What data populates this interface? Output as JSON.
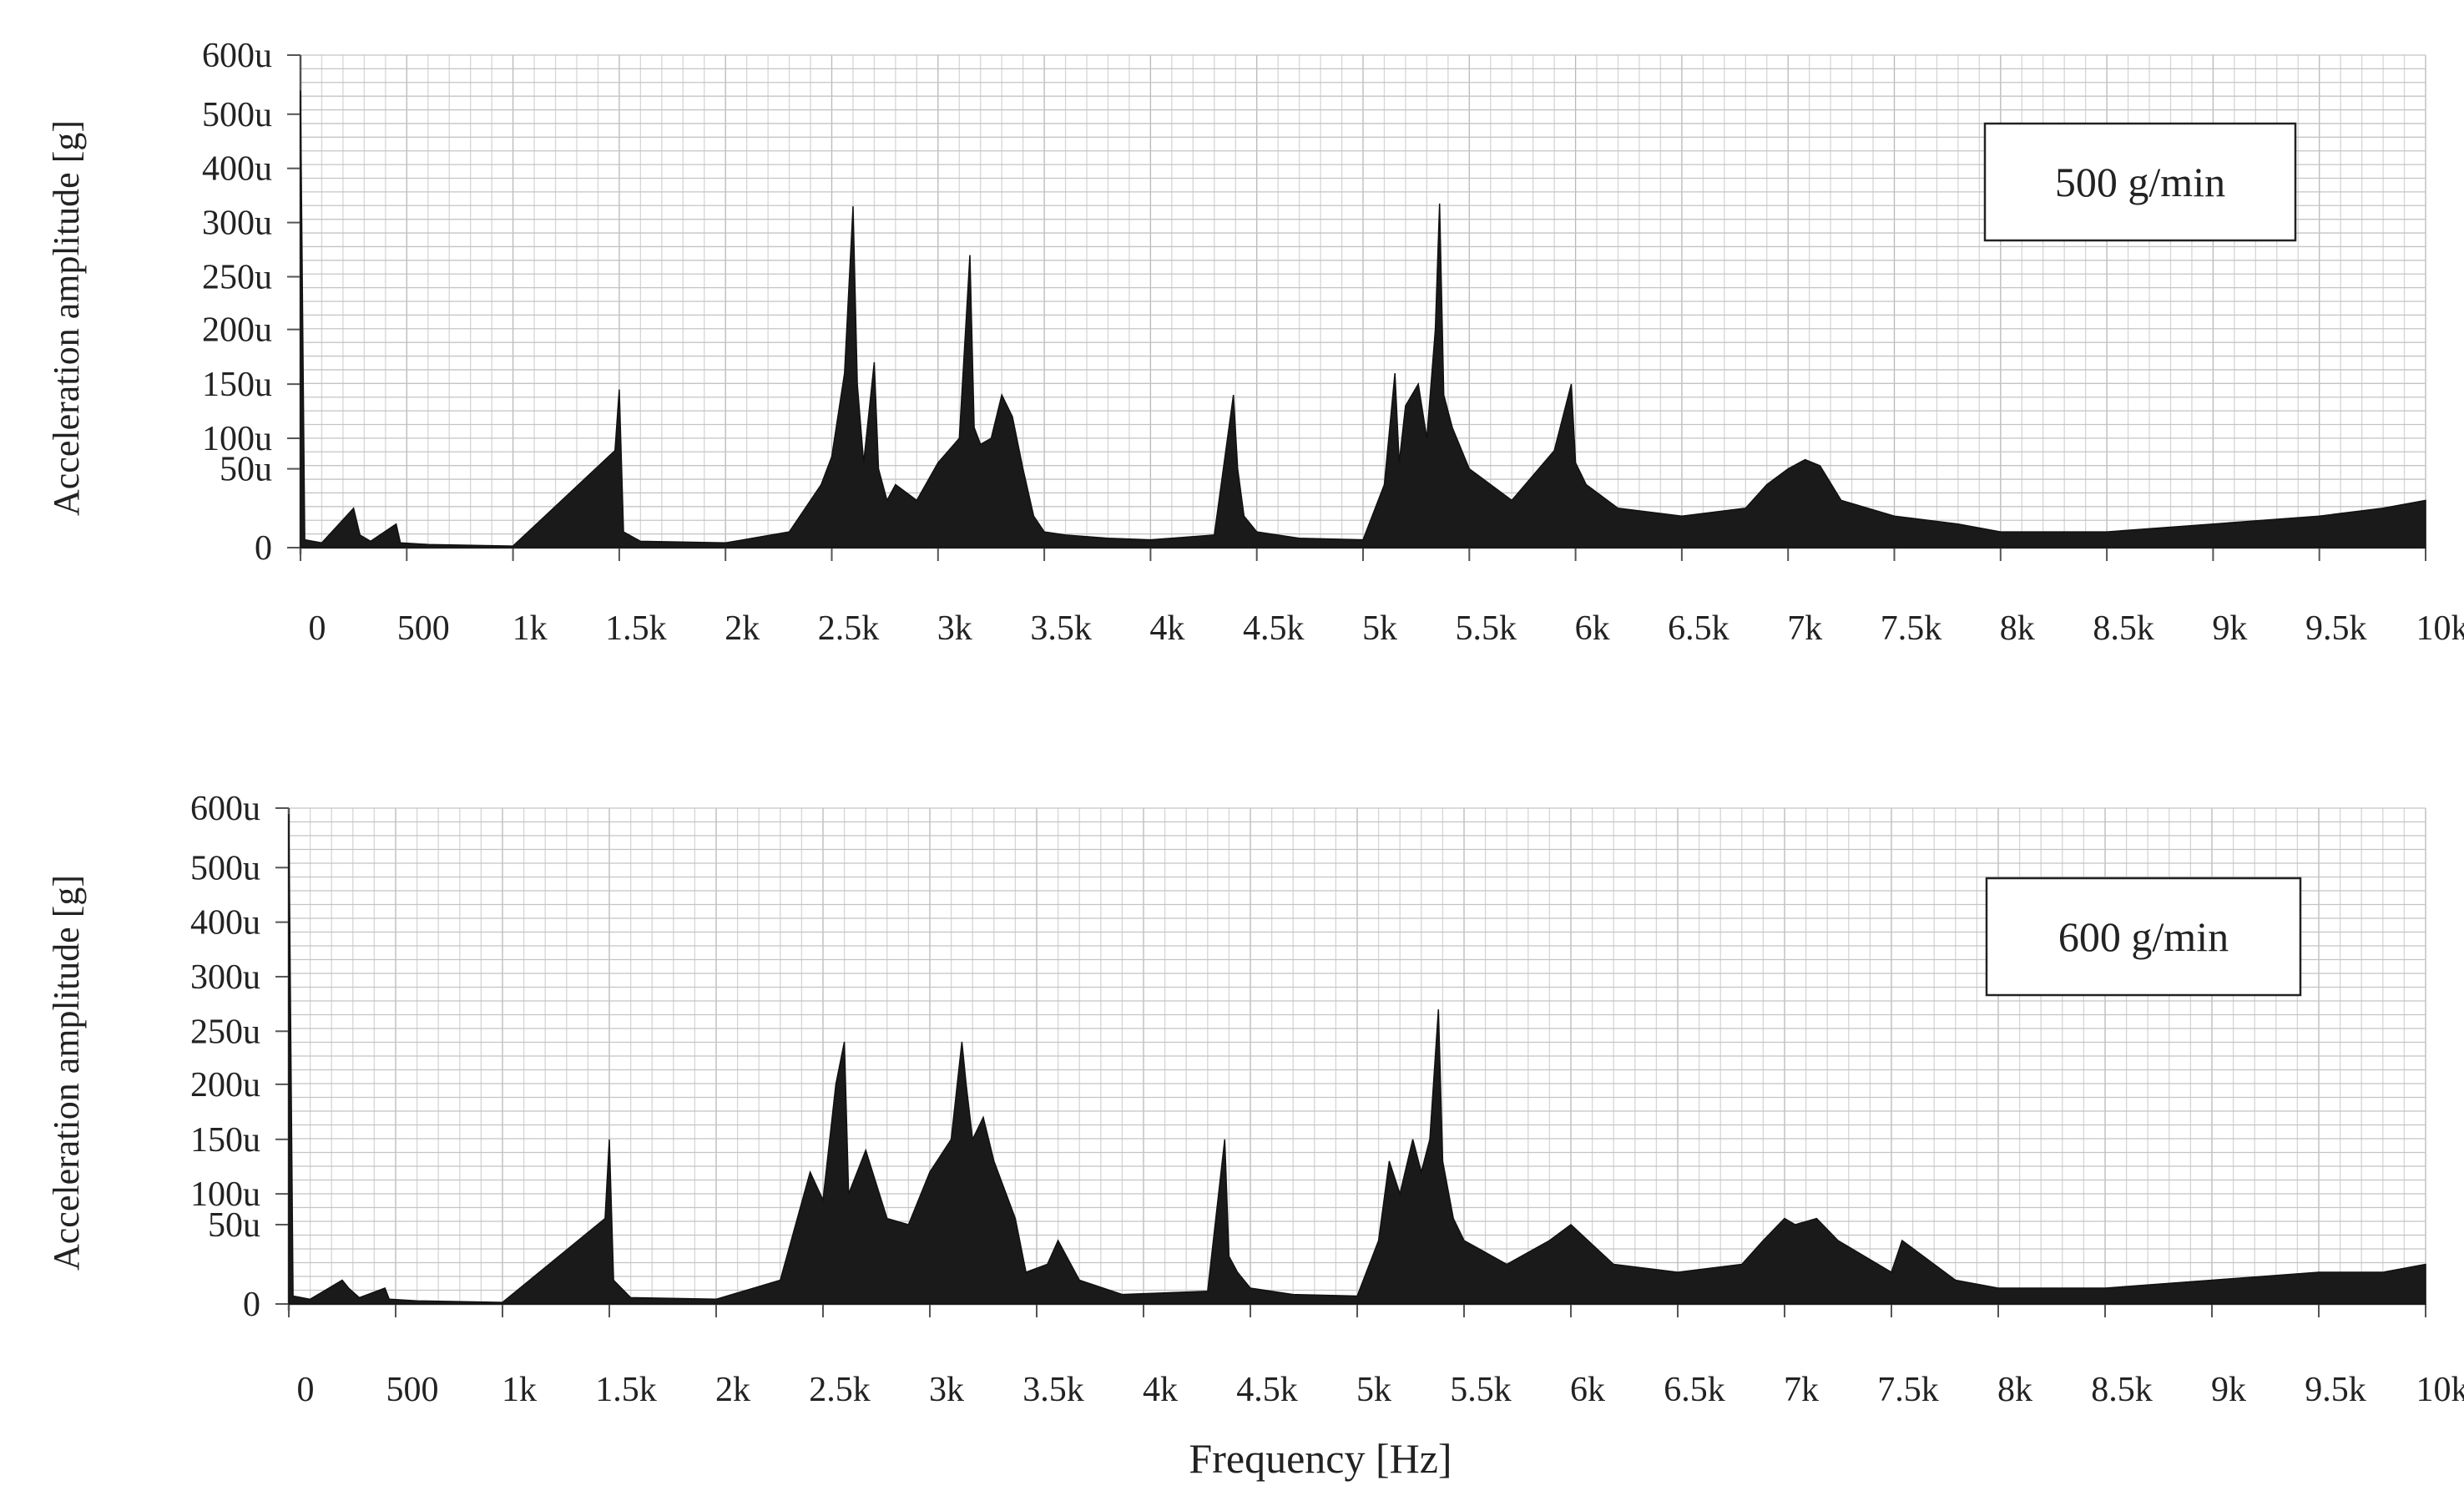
{
  "figure": {
    "xlabel": "Frequency [Hz]"
  },
  "chart_data": [
    {
      "type": "area",
      "annotation": "500 g/min",
      "xlabel": "",
      "ylabel": "Acceleration amplitude [g]",
      "xlim": [
        0,
        10000
      ],
      "ylim": [
        0,
        600
      ],
      "y_unit": "u (micro-g)",
      "grid": true,
      "x_ticks": [
        {
          "value": 0,
          "label": "0"
        },
        {
          "value": 500,
          "label": "500"
        },
        {
          "value": 1000,
          "label": "1k"
        },
        {
          "value": 1500,
          "label": "1.5k"
        },
        {
          "value": 2000,
          "label": "2k"
        },
        {
          "value": 2500,
          "label": "2.5k"
        },
        {
          "value": 3000,
          "label": "3k"
        },
        {
          "value": 3500,
          "label": "3.5k"
        },
        {
          "value": 4000,
          "label": "4k"
        },
        {
          "value": 4500,
          "label": "4.5k"
        },
        {
          "value": 5000,
          "label": "5k"
        },
        {
          "value": 5500,
          "label": "5.5k"
        },
        {
          "value": 6000,
          "label": "6k"
        },
        {
          "value": 6500,
          "label": "6.5k"
        },
        {
          "value": 7000,
          "label": "7k"
        },
        {
          "value": 7500,
          "label": "7.5k"
        },
        {
          "value": 8000,
          "label": "8k"
        },
        {
          "value": 8500,
          "label": "8.5k"
        },
        {
          "value": 9000,
          "label": "9k"
        },
        {
          "value": 9500,
          "label": "9.5k"
        },
        {
          "value": 10000,
          "label": "10k"
        }
      ],
      "y_ticks": [
        {
          "value": 0,
          "label": "0"
        },
        {
          "value": 50,
          "label": "50u"
        },
        {
          "value": 100,
          "label": "100u"
        },
        {
          "value": 150,
          "label": "150u"
        },
        {
          "value": 200,
          "label": "200u"
        },
        {
          "value": 250,
          "label": "250u"
        },
        {
          "value": 300,
          "label": "300u"
        },
        {
          "value": 400,
          "label": "400u"
        },
        {
          "value": 500,
          "label": "500u"
        },
        {
          "value": 600,
          "label": "600u"
        }
      ],
      "x": [
        0,
        20,
        100,
        250,
        280,
        330,
        450,
        470,
        600,
        1000,
        1480,
        1500,
        1520,
        1600,
        2000,
        2300,
        2450,
        2500,
        2560,
        2600,
        2620,
        2650,
        2700,
        2720,
        2760,
        2800,
        2900,
        3000,
        3100,
        3150,
        3170,
        3200,
        3250,
        3300,
        3350,
        3400,
        3450,
        3500,
        3600,
        3800,
        4000,
        4300,
        4390,
        4410,
        4440,
        4500,
        4700,
        5000,
        5100,
        5150,
        5170,
        5200,
        5260,
        5300,
        5340,
        5360,
        5380,
        5420,
        5500,
        5700,
        5900,
        5980,
        6000,
        6050,
        6200,
        6500,
        6800,
        6900,
        7000,
        7080,
        7150,
        7250,
        7500,
        7800,
        8000,
        8500,
        9000,
        9500,
        9800,
        10000
      ],
      "y": [
        540,
        5,
        3,
        25,
        8,
        4,
        15,
        3,
        2,
        1,
        80,
        145,
        10,
        4,
        3,
        10,
        40,
        70,
        160,
        330,
        150,
        60,
        170,
        50,
        30,
        40,
        30,
        60,
        100,
        270,
        110,
        90,
        100,
        140,
        120,
        50,
        20,
        10,
        8,
        6,
        5,
        8,
        140,
        50,
        20,
        10,
        6,
        5,
        40,
        160,
        60,
        130,
        150,
        100,
        200,
        335,
        140,
        110,
        50,
        30,
        80,
        150,
        60,
        40,
        25,
        20,
        25,
        40,
        50,
        65,
        55,
        30,
        20,
        15,
        10,
        10,
        15,
        20,
        25,
        30
      ]
    },
    {
      "type": "area",
      "annotation": "600 g/min",
      "xlabel": "Frequency [Hz]",
      "ylabel": "Acceleration amplitude [g]",
      "xlim": [
        0,
        10000
      ],
      "ylim": [
        0,
        600
      ],
      "y_unit": "u (micro-g)",
      "grid": true,
      "x_ticks": [
        {
          "value": 0,
          "label": "0"
        },
        {
          "value": 500,
          "label": "500"
        },
        {
          "value": 1000,
          "label": "1k"
        },
        {
          "value": 1500,
          "label": "1.5k"
        },
        {
          "value": 2000,
          "label": "2k"
        },
        {
          "value": 2500,
          "label": "2.5k"
        },
        {
          "value": 3000,
          "label": "3k"
        },
        {
          "value": 3500,
          "label": "3.5k"
        },
        {
          "value": 4000,
          "label": "4k"
        },
        {
          "value": 4500,
          "label": "4.5k"
        },
        {
          "value": 5000,
          "label": "5k"
        },
        {
          "value": 5500,
          "label": "5.5k"
        },
        {
          "value": 6000,
          "label": "6k"
        },
        {
          "value": 6500,
          "label": "6.5k"
        },
        {
          "value": 7000,
          "label": "7k"
        },
        {
          "value": 7500,
          "label": "7.5k"
        },
        {
          "value": 8000,
          "label": "8k"
        },
        {
          "value": 8500,
          "label": "8.5k"
        },
        {
          "value": 9000,
          "label": "9k"
        },
        {
          "value": 9500,
          "label": "9.5k"
        },
        {
          "value": 10000,
          "label": "10k"
        }
      ],
      "y_ticks": [
        {
          "value": 0,
          "label": "0"
        },
        {
          "value": 50,
          "label": "50u"
        },
        {
          "value": 100,
          "label": "100u"
        },
        {
          "value": 150,
          "label": "150u"
        },
        {
          "value": 200,
          "label": "200u"
        },
        {
          "value": 250,
          "label": "250u"
        },
        {
          "value": 300,
          "label": "300u"
        },
        {
          "value": 400,
          "label": "400u"
        },
        {
          "value": 500,
          "label": "500u"
        },
        {
          "value": 600,
          "label": "600u"
        }
      ],
      "x": [
        0,
        20,
        100,
        250,
        280,
        330,
        450,
        470,
        600,
        1000,
        1480,
        1500,
        1520,
        1600,
        2000,
        2300,
        2440,
        2500,
        2560,
        2600,
        2620,
        2700,
        2800,
        2900,
        3000,
        3100,
        3150,
        3170,
        3200,
        3250,
        3300,
        3400,
        3450,
        3550,
        3600,
        3700,
        3900,
        4300,
        4380,
        4400,
        4440,
        4500,
        4700,
        5000,
        5100,
        5150,
        5200,
        5260,
        5300,
        5340,
        5380,
        5400,
        5450,
        5500,
        5700,
        5900,
        6000,
        6200,
        6500,
        6800,
        6900,
        7000,
        7050,
        7150,
        7250,
        7500,
        7550,
        7800,
        8000,
        8500,
        9000,
        9500,
        9800,
        10000
      ],
      "y": [
        590,
        5,
        3,
        15,
        10,
        4,
        10,
        3,
        2,
        1,
        60,
        150,
        15,
        4,
        3,
        15,
        120,
        90,
        200,
        240,
        100,
        140,
        60,
        50,
        120,
        150,
        240,
        200,
        150,
        170,
        130,
        60,
        20,
        25,
        40,
        15,
        6,
        8,
        150,
        30,
        20,
        10,
        6,
        5,
        40,
        130,
        100,
        150,
        120,
        150,
        270,
        130,
        60,
        40,
        25,
        40,
        50,
        25,
        20,
        25,
        40,
        60,
        50,
        60,
        40,
        20,
        40,
        15,
        10,
        10,
        15,
        20,
        20,
        25
      ]
    }
  ]
}
